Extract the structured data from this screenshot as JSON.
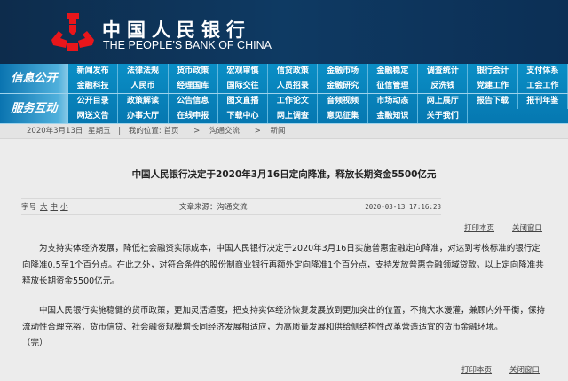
{
  "header": {
    "title_cn": "中国人民银行",
    "title_en": "THE PEOPLE'S BANK OF CHINA",
    "logo_color": "#e8161b"
  },
  "nav": {
    "sections": [
      {
        "label": "信息公开",
        "rows": [
          [
            "新闻发布",
            "法律法规",
            "货币政策",
            "宏观审慎",
            "信贷政策",
            "金融市场",
            "金融稳定",
            "调查统计",
            "银行会计",
            "支付体系"
          ],
          [
            "金融科技",
            "人民币",
            "经理国库",
            "国际交往",
            "人员招录",
            "金融研究",
            "征信管理",
            "反洗钱",
            "党建工作",
            "工会工作"
          ]
        ]
      },
      {
        "label": "服务互动",
        "rows": [
          [
            "公开目录",
            "政策解读",
            "公告信息",
            "图文直播",
            "工作论文",
            "音频视频",
            "市场动态",
            "网上展厅",
            "报告下载",
            "报刊年鉴"
          ],
          [
            "网送文告",
            "办事大厅",
            "在线申报",
            "下载中心",
            "网上调查",
            "意见征集",
            "金融知识",
            "关于我们"
          ]
        ]
      }
    ]
  },
  "breadcrumb": {
    "date": "2020年3月13日",
    "weekday": "星期五",
    "sep": "|",
    "location_label": "我的位置:",
    "items": [
      "首页",
      "沟通交流",
      "新闻"
    ],
    "arrow": ">"
  },
  "article": {
    "title": "中国人民银行决定于2020年3月16日定向降准，释放长期资金5500亿元",
    "font_size_label": "字号",
    "font_sizes": [
      "大",
      "中",
      "小"
    ],
    "source": "文章来源：沟通交流",
    "timestamp": "2020-03-13 17:16:23",
    "print": "打印本页",
    "close": "关闭窗口",
    "paragraphs": [
      "为支持实体经济发展，降低社会融资实际成本，中国人民银行决定于2020年3月16日实施普惠金融定向降准，对达到考核标准的银行定向降准0.5至1个百分点。在此之外，对符合条件的股份制商业银行再额外定向降准1个百分点，支持发放普惠金融领域贷款。以上定向降准共释放长期资金5500亿元。",
      "中国人民银行实施稳健的货币政策，更加灵活适度，把支持实体经济恢复发展放到更加突出的位置，不搞大水漫灌，兼顾内外平衡，保持流动性合理充裕，货币信贷、社会融资规模增长同经济发展相适应，为高质量发展和供给侧结构性改革营造适宜的货币金融环境。",
      "（完）"
    ]
  }
}
